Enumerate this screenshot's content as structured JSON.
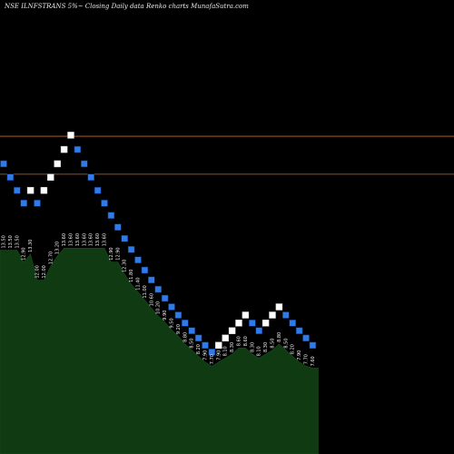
{
  "title": "NSE ILNFSTRANS 5%~  Closing Daily data  Renko  charts MunafaSutra.com",
  "colors": {
    "background": "#000000",
    "up_brick": "#ffffff",
    "down_brick": "#2f7be8",
    "brick_border": "#0a2a6a",
    "hline": "#c26a2a",
    "area_fill": "#0f3a12",
    "area_stroke": "#000000",
    "label": "#ffffff"
  },
  "chart_data": {
    "type": "renko",
    "title": "NSE ILNFSTRANS 5%~  Closing Daily data  Renko  charts MunafaSutra.com",
    "box_size_pct": 5,
    "ylim": [
      3.3,
      24.2
    ],
    "horizontal_lines": [
      19.2,
      17.3
    ],
    "bricks": [
      {
        "dir": "down",
        "value": 17.82
      },
      {
        "dir": "down",
        "value": 17.15
      },
      {
        "dir": "down",
        "value": 16.49
      },
      {
        "dir": "down",
        "value": 15.85
      },
      {
        "dir": "up",
        "value": 16.49
      },
      {
        "dir": "down",
        "value": 15.85
      },
      {
        "dir": "up",
        "value": 16.49
      },
      {
        "dir": "up",
        "value": 17.15
      },
      {
        "dir": "up",
        "value": 17.82
      },
      {
        "dir": "up",
        "value": 18.54
      },
      {
        "dir": "up",
        "value": 19.25
      },
      {
        "dir": "down",
        "value": 18.54
      },
      {
        "dir": "down",
        "value": 17.82
      },
      {
        "dir": "down",
        "value": 17.15
      },
      {
        "dir": "down",
        "value": 16.49
      },
      {
        "dir": "down",
        "value": 15.85
      },
      {
        "dir": "down",
        "value": 15.24
      },
      {
        "dir": "down",
        "value": 14.65
      },
      {
        "dir": "down",
        "value": 14.08
      },
      {
        "dir": "down",
        "value": 13.53
      },
      {
        "dir": "down",
        "value": 13.01
      },
      {
        "dir": "down",
        "value": 12.5
      },
      {
        "dir": "down",
        "value": 12.01
      },
      {
        "dir": "down",
        "value": 11.54
      },
      {
        "dir": "down",
        "value": 11.09
      },
      {
        "dir": "down",
        "value": 10.66
      },
      {
        "dir": "down",
        "value": 10.25
      },
      {
        "dir": "down",
        "value": 9.85
      },
      {
        "dir": "down",
        "value": 9.47
      },
      {
        "dir": "down",
        "value": 9.1
      },
      {
        "dir": "down",
        "value": 8.74
      },
      {
        "dir": "down",
        "value": 8.4
      },
      {
        "dir": "up",
        "value": 8.74
      },
      {
        "dir": "up",
        "value": 9.1
      },
      {
        "dir": "up",
        "value": 9.47
      },
      {
        "dir": "up",
        "value": 9.85
      },
      {
        "dir": "up",
        "value": 10.25
      },
      {
        "dir": "down",
        "value": 9.85
      },
      {
        "dir": "down",
        "value": 9.47
      },
      {
        "dir": "up",
        "value": 9.85
      },
      {
        "dir": "up",
        "value": 10.25
      },
      {
        "dir": "up",
        "value": 10.66
      },
      {
        "dir": "down",
        "value": 10.25
      },
      {
        "dir": "down",
        "value": 9.85
      },
      {
        "dir": "down",
        "value": 9.47
      },
      {
        "dir": "down",
        "value": 9.1
      },
      {
        "dir": "down",
        "value": 8.74
      }
    ],
    "area_series": [
      13.5,
      13.5,
      13.5,
      12.9,
      13.3,
      12.0,
      12.0,
      12.7,
      13.2,
      13.6,
      13.6,
      13.6,
      13.6,
      13.6,
      13.6,
      13.6,
      12.9,
      12.9,
      12.3,
      11.8,
      11.4,
      11.0,
      10.6,
      10.2,
      9.9,
      9.5,
      9.2,
      8.8,
      8.5,
      8.2,
      7.9,
      7.7,
      7.9,
      8.1,
      8.3,
      8.6,
      8.6,
      8.3,
      8.1,
      8.3,
      8.5,
      8.8,
      8.5,
      8.2,
      7.9,
      7.7,
      7.6
    ]
  }
}
